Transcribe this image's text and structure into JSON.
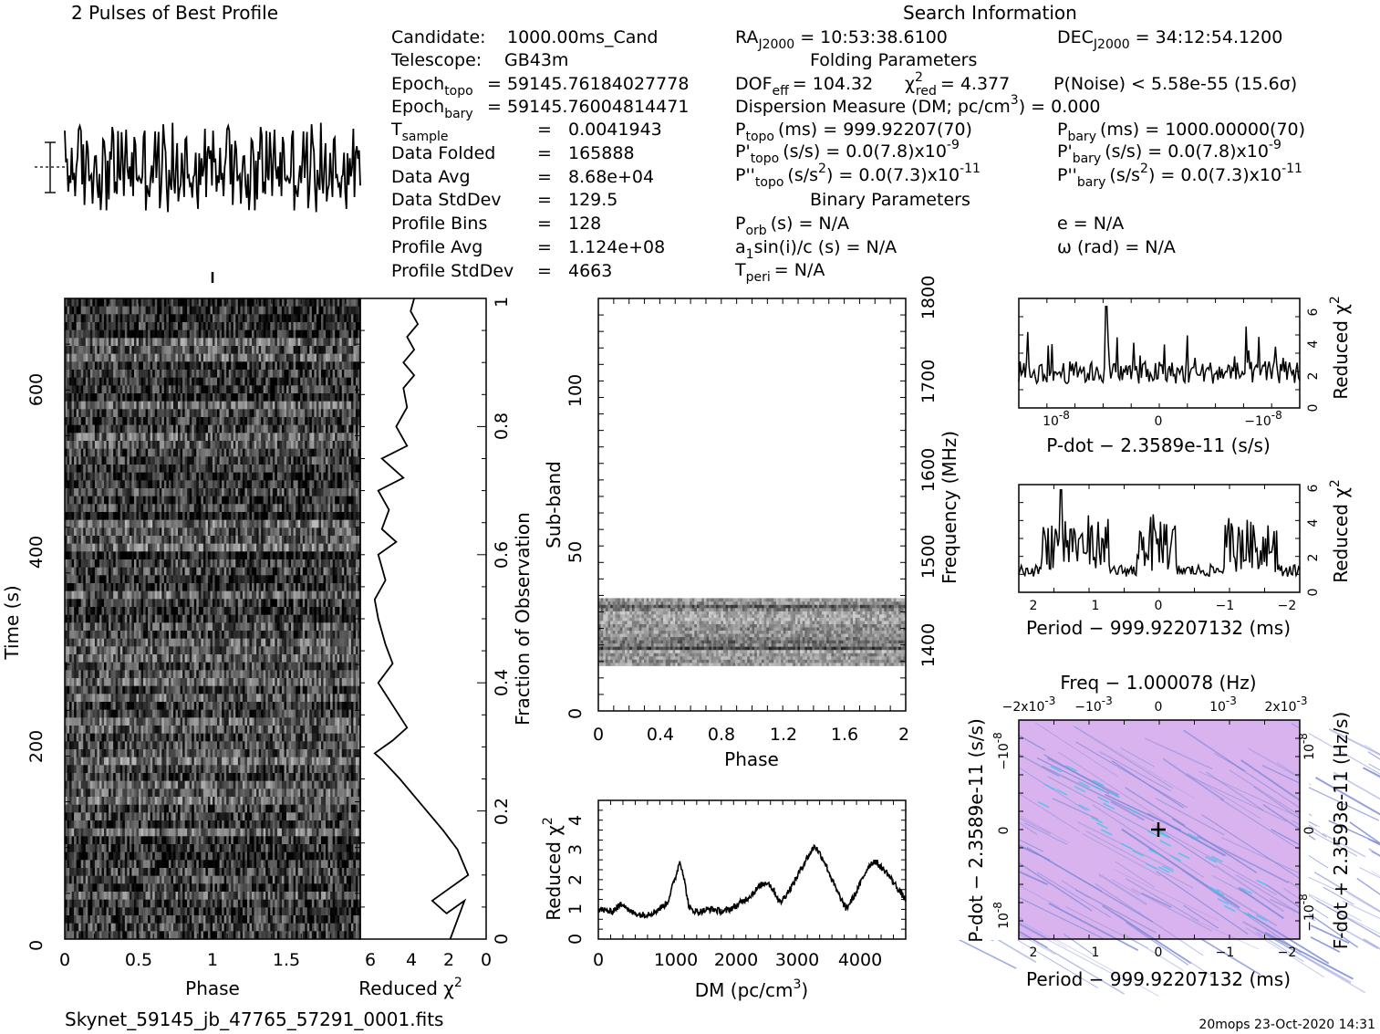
{
  "header": {
    "profile_title": "2 Pulses of Best Profile",
    "search_title": "Search Information",
    "folding_title": "Folding Parameters",
    "binary_title": "Binary Parameters"
  },
  "candidate_info": {
    "candidate_label": "Candidate:",
    "candidate_value": "1000.00ms_Cand",
    "telescope_label": "Telescope:",
    "telescope_value": "GB43m",
    "epoch_topo_label": "Epoch",
    "epoch_topo_sub": "topo",
    "epoch_topo_value": "= 59145.76184027778",
    "epoch_bary_label": "Epoch",
    "epoch_bary_sub": "bary",
    "epoch_bary_value": "= 59145.76004814471",
    "tsample_label": "T",
    "tsample_sub": "sample",
    "tsample_value": "0.0041943",
    "data_folded_label": "Data Folded",
    "data_folded_value": "165888",
    "data_avg_label": "Data Avg",
    "data_avg_value": "8.68e+04",
    "data_std_label": "Data StdDev",
    "data_std_value": "129.5",
    "profile_bins_label": "Profile Bins",
    "profile_bins_value": "128",
    "profile_avg_label": "Profile Avg",
    "profile_avg_value": "1.124e+08",
    "profile_std_label": "Profile StdDev",
    "profile_std_value": "4663",
    "eq": "="
  },
  "search_info": {
    "ra_label": "RA",
    "ra_sub": "J2000",
    "ra_value": "= 10:53:38.6100",
    "dec_label": "DEC",
    "dec_sub": "J2000",
    "dec_value": "= 34:12:54.1200",
    "dof_label": "DOF",
    "dof_sub": "eff",
    "dof_value": "= 104.32",
    "chi_label": "χ",
    "chi_sup": "2",
    "chi_sub": "red",
    "chi_value": "= 4.377",
    "pnoise": "P(Noise) < 5.58e-55   (15.6σ)",
    "dm_text": "Dispersion Measure (DM; pc/cm",
    "dm_sup": "3",
    "dm_value": ") = 0.000",
    "ptopo_label": "P",
    "ptopo_sub": "topo",
    "ptopo_value": "(ms) =  999.92207(70)",
    "pbary_label": "P",
    "pbary_sub": "bary",
    "pbary_value": "(ms) =  1000.00000(70)",
    "pdtopo_label": "P'",
    "pdtopo_sub": "topo",
    "pdtopo_value": "(s/s) = 0.0(7.8)x10",
    "pdtopo_exp": "-9",
    "pdbary_label": "P'",
    "pdbary_sub": "bary",
    "pdbary_value": "(s/s) = 0.0(7.8)x10",
    "pdbary_exp": "-9",
    "pddtopo_label": "P''",
    "pddtopo_sub": "topo",
    "pddtopo_value_a": "(s/s",
    "pddtopo_value_b": ") = 0.0(7.3)x10",
    "pddtopo_exp": "-11",
    "pddbary_label": "P''",
    "pddbary_sub": "bary",
    "pddbary_value_a": "(s/s",
    "pddbary_value_b": ") = 0.0(7.3)x10",
    "pddbary_exp": "-11",
    "sq": "2",
    "porb_label": "P",
    "porb_sub": "orb",
    "porb_value": "(s) = N/A",
    "e_text": "e = N/A",
    "a1_label": "a",
    "a1_sub": "1",
    "a1_value": "sin(i)/c (s) = N/A",
    "omega_text": "ω (rad) = N/A",
    "tperi_label": "T",
    "tperi_sub": "peri",
    "tperi_value": "= N/A"
  },
  "footer": {
    "filename": "Skynet_59145_jb_47765_57291_0001.fits",
    "stamp": "20mops 23-Oct-2020 14:31"
  },
  "axes": {
    "time_label": "Time (s)",
    "phase_label": "Phase",
    "redchi_label": "Reduced χ",
    "redchi_sup": "2",
    "fraction_label": "Fraction of Observation",
    "subband_label": "Sub-band",
    "frequency_label": "Frequency (MHz)",
    "dm_axis_label": "DM (pc/cm",
    "dm_axis_sup": "3",
    "dm_axis_close": ")",
    "pdot_axis_label": "P-dot − 2.3589e-11 (s/s)",
    "period_axis_label": "Period − 999.92207132 (ms)",
    "freq_axis_label": "Freq − 1.000078 (Hz)",
    "fdot_axis_label": "F-dot + 2.3593e-11 (Hz/s)"
  },
  "ticks": {
    "time": [
      "0",
      "200",
      "400",
      "600"
    ],
    "phase_tv": [
      "0",
      "0.5",
      "1",
      "1.5"
    ],
    "redchi_tv": [
      "6",
      "4",
      "2",
      "0"
    ],
    "fraction": [
      "0",
      "0.2",
      "0.4",
      "0.6",
      "0.8",
      "1"
    ],
    "subband": [
      "0",
      "50",
      "100"
    ],
    "freq": [
      "1400",
      "1500",
      "1600",
      "1700",
      "1800"
    ],
    "phase_sub": [
      "0",
      "0.4",
      "0.8",
      "1.2",
      "1.6",
      "2"
    ],
    "dm_x": [
      "0",
      "1000",
      "2000",
      "3000",
      "4000"
    ],
    "dm_y": [
      "0",
      "1",
      "2",
      "3",
      "4"
    ],
    "pdot_x": [
      "10",
      "0",
      "−10"
    ],
    "pdot_x_exp": "-8",
    "pdot_y": [
      "0",
      "2",
      "4",
      "6"
    ],
    "period_x": [
      "2",
      "1",
      "0",
      "−1",
      "−2"
    ],
    "period_y": [
      "0",
      "2",
      "4",
      "6"
    ],
    "freq_top": [
      "−2x10",
      "−10",
      "0",
      "10",
      "2x10"
    ],
    "freq_top_exp": "-3",
    "pp_left": [
      "−10",
      "0",
      "10"
    ],
    "pp_right": [
      "10",
      "0",
      "−10"
    ],
    "pp_exp": "-8"
  },
  "colors": {
    "ink": "#000000",
    "ppdot_base": "#d9b3ee",
    "ppdot_streak": "#7a86d6",
    "ppdot_highlight": "#3ec6e8",
    "subband_gray": "#cccccc"
  },
  "chart_data": [
    {
      "type": "line",
      "name": "pulse-profile",
      "title": "2 Pulses of Best Profile",
      "xlabel": "",
      "ylabel": "",
      "x_phase_range": [
        0,
        2
      ],
      "note_values": "noisy profile, 256 bins over 2 pulses; roughly flat with noise amplitude ~±1"
    },
    {
      "type": "heatmap",
      "name": "time-vs-phase",
      "xlabel": "Phase",
      "ylabel": "Time (s)",
      "xlim": [
        0,
        2
      ],
      "ylim": [
        0,
        700
      ]
    },
    {
      "type": "line",
      "name": "redchi-vs-time",
      "xlabel": "Reduced χ2",
      "ylabel": "Fraction of Observation",
      "xlim": [
        7,
        0
      ],
      "ylim": [
        0,
        1
      ],
      "x": [
        2.0,
        1.2,
        2.2,
        3.0,
        2.0,
        1.0,
        1.6,
        2.4,
        3.6,
        4.8,
        5.8,
        6.2,
        5.2,
        4.4,
        6.0,
        5.2,
        5.6,
        6.0,
        6.2,
        5.6,
        5.8,
        6.0,
        5.0,
        5.8,
        5.4,
        6.0,
        4.6,
        5.8,
        4.4,
        5.0,
        4.4,
        4.6,
        4.0,
        4.6,
        4.0,
        4.4,
        3.8,
        4.2,
        4.0
      ],
      "y": [
        0.0,
        0.06,
        0.04,
        0.06,
        0.08,
        0.1,
        0.14,
        0.17,
        0.21,
        0.25,
        0.28,
        0.29,
        0.31,
        0.33,
        0.4,
        0.43,
        0.46,
        0.5,
        0.53,
        0.56,
        0.58,
        0.6,
        0.62,
        0.64,
        0.67,
        0.7,
        0.72,
        0.75,
        0.77,
        0.8,
        0.83,
        0.86,
        0.88,
        0.9,
        0.92,
        0.94,
        0.96,
        0.98,
        1.0
      ]
    },
    {
      "type": "heatmap",
      "name": "subband-vs-phase",
      "xlabel": "Phase",
      "ylabel": "Sub-band",
      "y2label": "Frequency (MHz)",
      "xlim": [
        0,
        2
      ],
      "ylim": [
        0,
        128
      ],
      "y2lim": [
        1336,
        1800
      ],
      "active_subbands": [
        14,
        35
      ]
    },
    {
      "type": "line",
      "name": "redchi-vs-dm",
      "xlabel": "DM (pc/cm3)",
      "ylabel": "Reduced χ2",
      "xlim": [
        0,
        4900
      ],
      "ylim": [
        0,
        4.6
      ],
      "x": [
        0,
        200,
        400,
        500,
        700,
        900,
        1100,
        1250,
        1300,
        1350,
        1450,
        1600,
        1800,
        2000,
        2200,
        2400,
        2600,
        2700,
        2800,
        2900,
        3100,
        3300,
        3450,
        3600,
        3800,
        3950,
        4100,
        4300,
        4400,
        4600,
        4800,
        4900
      ],
      "y": [
        1.0,
        0.9,
        1.2,
        0.9,
        0.8,
        0.9,
        1.2,
        2.2,
        2.6,
        2.2,
        1.0,
        0.9,
        1.0,
        0.9,
        1.1,
        1.4,
        1.8,
        1.9,
        1.6,
        1.2,
        1.8,
        2.6,
        3.1,
        2.6,
        1.6,
        1.0,
        1.5,
        2.4,
        2.6,
        2.2,
        1.6,
        1.3
      ]
    },
    {
      "type": "line",
      "name": "redchi-vs-pdot",
      "xlabel": "P-dot − 2.3589e-11 (s/s)",
      "ylabel": "Reduced χ2",
      "xlim": [
        1.5e-08,
        -1.5e-08
      ],
      "ylim": [
        0,
        6.8
      ]
    },
    {
      "type": "line",
      "name": "redchi-vs-period",
      "xlabel": "Period − 999.92207132 (ms)",
      "ylabel": "Reduced χ2",
      "xlim": [
        2.3,
        -2.3
      ],
      "ylim": [
        0,
        6.2
      ]
    },
    {
      "type": "heatmap",
      "name": "p-pdot-plane",
      "title": "Freq − 1.000078 (Hz)",
      "xlabel": "Period − 999.92207132 (ms)",
      "ylabel": "P-dot − 2.3589e-11 (s/s)",
      "y2label": "F-dot + 2.3593e-11 (Hz/s)",
      "xlim": [
        2.3,
        -2.3
      ],
      "ylim": [
        1.3e-08,
        -1.3e-08
      ],
      "best": [
        0,
        0
      ]
    }
  ]
}
